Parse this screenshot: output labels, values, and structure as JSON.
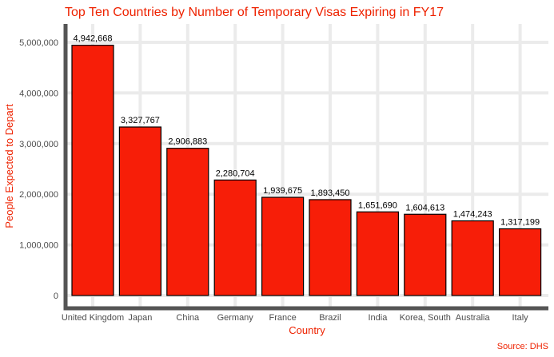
{
  "colors": {
    "accent": "#ee2200",
    "bar_fill": "#f71e08",
    "bar_stroke": "#000000",
    "grid": "#ebebeb",
    "axis_line": "#555555"
  },
  "chart_data": {
    "type": "bar",
    "title": "Top Ten Countries by Number of Temporary Visas Expiring in FY17",
    "xlabel": "Country",
    "ylabel": "People Expected to Depart",
    "caption": "Source: DHS",
    "categories": [
      "United Kingdom",
      "Japan",
      "China",
      "Germany",
      "France",
      "Brazil",
      "India",
      "Korea, South",
      "Australia",
      "Italy"
    ],
    "values": [
      4942668,
      3327767,
      2906883,
      2280704,
      1939675,
      1893450,
      1651690,
      1604613,
      1474243,
      1317199
    ],
    "value_labels": [
      "4,942,668",
      "3,327,767",
      "2,906,883",
      "2,280,704",
      "1,939,675",
      "1,893,450",
      "1,651,690",
      "1,604,613",
      "1,474,243",
      "1,317,199"
    ],
    "y_ticks": [
      0,
      1000000,
      2000000,
      3000000,
      4000000,
      5000000
    ],
    "y_tick_labels": [
      "0",
      "1,000,000",
      "2,000,000",
      "3,000,000",
      "4,000,000",
      "5,000,000"
    ],
    "ylim": [
      0,
      5300000
    ],
    "grid": true,
    "legend": "none"
  }
}
